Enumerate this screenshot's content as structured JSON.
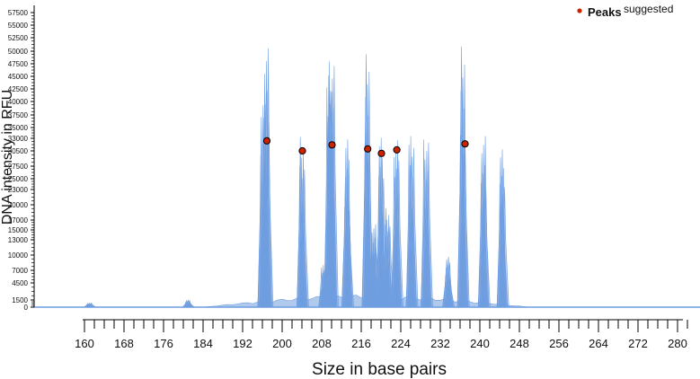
{
  "chart_data": {
    "type": "line",
    "title": "",
    "xlabel": "Size in base pairs",
    "ylabel": "DNA intensity in RFU",
    "xlim": [
      155,
      285
    ],
    "ylim": [
      0,
      58500
    ],
    "grid": false,
    "legend": {
      "position": "top-right",
      "marker_label": "Peaks",
      "suffix": "suggested"
    },
    "y_ticks": [
      0,
      1500,
      4500,
      7000,
      10000,
      13000,
      15000,
      17000,
      20000,
      23000,
      25000,
      27500,
      30500,
      33000,
      35000,
      37500,
      40000,
      42500,
      45000,
      47500,
      50000,
      52500,
      55000,
      57500
    ],
    "x_tick_labels": [
      160,
      168,
      176,
      184,
      192,
      200,
      208,
      216,
      224,
      232,
      240,
      248,
      256,
      264,
      272,
      280
    ],
    "colors": {
      "trace": "#6f9ee0",
      "peak_fill": "#cc2200",
      "peak_stroke": "#000000",
      "axis": "#000000"
    },
    "trace_peaks": [
      {
        "x": 161,
        "height": 900
      },
      {
        "x": 181,
        "height": 1500
      },
      {
        "x": 196.2,
        "height": 44500
      },
      {
        "x": 196.9,
        "height": 51000
      },
      {
        "x": 204.1,
        "height": 35000
      },
      {
        "x": 208.5,
        "height": 9000
      },
      {
        "x": 209.6,
        "height": 47500
      },
      {
        "x": 210.1,
        "height": 50000
      },
      {
        "x": 213.2,
        "height": 34500
      },
      {
        "x": 217.3,
        "height": 51500
      },
      {
        "x": 218.6,
        "height": 17000
      },
      {
        "x": 220.1,
        "height": 34500
      },
      {
        "x": 221.4,
        "height": 20000
      },
      {
        "x": 223.2,
        "height": 34000
      },
      {
        "x": 226.2,
        "height": 34500
      },
      {
        "x": 229.2,
        "height": 33500
      },
      {
        "x": 233.6,
        "height": 10000
      },
      {
        "x": 236.6,
        "height": 52000
      },
      {
        "x": 240.8,
        "height": 34500
      },
      {
        "x": 244.6,
        "height": 31500
      }
    ],
    "series": [
      {
        "name": "Peaks",
        "points": [
          {
            "x": 196.9,
            "y": 32500
          },
          {
            "x": 204.1,
            "y": 30500
          },
          {
            "x": 210.1,
            "y": 31700
          },
          {
            "x": 217.3,
            "y": 30900
          },
          {
            "x": 220.1,
            "y": 30000
          },
          {
            "x": 223.2,
            "y": 30700
          },
          {
            "x": 237.0,
            "y": 31900
          }
        ]
      }
    ]
  }
}
